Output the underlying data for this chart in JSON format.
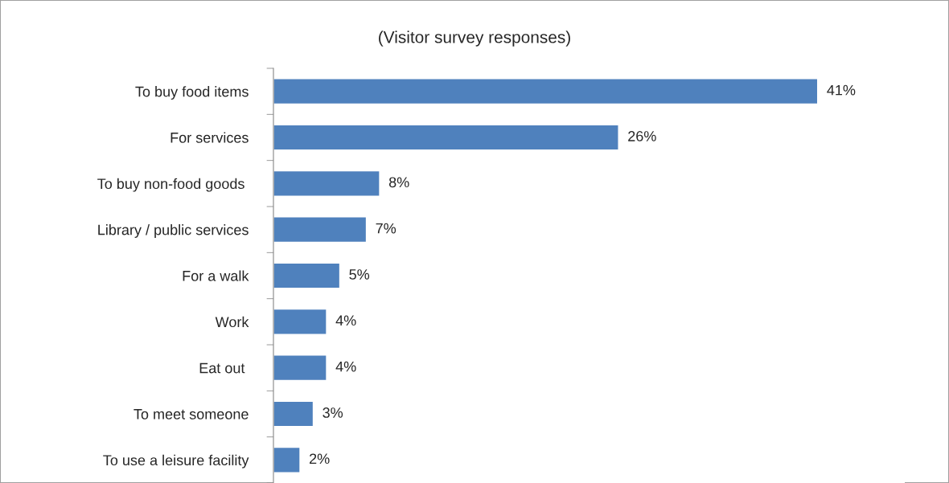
{
  "chart_data": {
    "type": "bar",
    "orientation": "horizontal",
    "title": "(Visitor survey responses)",
    "categories": [
      "To buy food items",
      "For services",
      "To buy non-food goods ",
      "Library / public services",
      "For a walk",
      "Work",
      "Eat out ",
      "To meet someone",
      "To use a leisure facility"
    ],
    "values": [
      41,
      26,
      8,
      7,
      5,
      4,
      4,
      3,
      2
    ],
    "value_labels": [
      "41%",
      "26%",
      "8%",
      "7%",
      "5%",
      "4%",
      "4%",
      "3%",
      "2%"
    ],
    "color": "#4f81bd",
    "grid": false,
    "legend": false
  }
}
